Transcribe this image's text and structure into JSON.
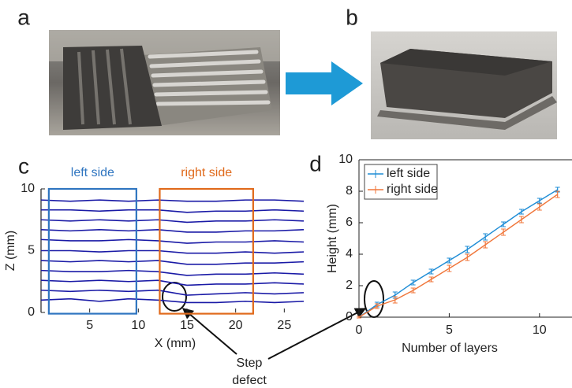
{
  "panels": [
    "a",
    "b",
    "c",
    "d"
  ],
  "annotation": {
    "lines": [
      "Step",
      "defect"
    ]
  },
  "chart_data": [
    {
      "type": "profile",
      "xlabel": "X (mm)",
      "ylabel": "Z (mm)",
      "xlim": [
        0,
        27
      ],
      "ylim": [
        0,
        10
      ],
      "xticks": [
        5,
        10,
        15,
        20,
        25
      ],
      "yticks": [
        0,
        5,
        10
      ],
      "x": [
        0,
        3,
        6,
        9,
        12,
        15,
        18,
        21,
        24,
        27
      ],
      "series": [
        {
          "color": "#1a1aa6",
          "values": [
            1.0,
            1.1,
            0.9,
            1.1,
            1.0,
            0.8,
            0.8,
            0.9,
            0.8,
            0.9
          ]
        },
        {
          "color": "#1a1aa6",
          "values": [
            1.8,
            1.7,
            1.8,
            1.7,
            1.8,
            1.4,
            1.5,
            1.6,
            1.5,
            1.6
          ]
        },
        {
          "color": "#1a1aa6",
          "values": [
            2.6,
            2.5,
            2.6,
            2.5,
            2.6,
            2.2,
            2.3,
            2.3,
            2.4,
            2.3
          ]
        },
        {
          "color": "#1a1aa6",
          "values": [
            3.4,
            3.3,
            3.3,
            3.4,
            3.3,
            3.0,
            3.1,
            3.1,
            3.2,
            3.1
          ]
        },
        {
          "color": "#1a1aa6",
          "values": [
            4.2,
            4.1,
            4.2,
            4.1,
            4.2,
            3.9,
            3.9,
            4.0,
            4.0,
            4.1
          ]
        },
        {
          "color": "#1a1aa6",
          "values": [
            5.0,
            5.0,
            4.9,
            5.0,
            5.0,
            4.8,
            4.8,
            4.9,
            4.8,
            4.9
          ]
        },
        {
          "color": "#1a1aa6",
          "values": [
            5.9,
            5.8,
            5.8,
            5.9,
            5.8,
            5.6,
            5.7,
            5.7,
            5.8,
            5.7
          ]
        },
        {
          "color": "#1a1aa6",
          "values": [
            6.7,
            6.6,
            6.7,
            6.6,
            6.7,
            6.5,
            6.5,
            6.6,
            6.6,
            6.7
          ]
        },
        {
          "color": "#1a1aa6",
          "values": [
            7.5,
            7.4,
            7.5,
            7.4,
            7.5,
            7.3,
            7.4,
            7.4,
            7.5,
            7.4
          ]
        },
        {
          "color": "#1a1aa6",
          "values": [
            8.3,
            8.3,
            8.2,
            8.3,
            8.3,
            8.1,
            8.2,
            8.2,
            8.3,
            8.2
          ]
        },
        {
          "color": "#1a1aa6",
          "values": [
            9.1,
            9.0,
            9.1,
            9.0,
            9.1,
            9.0,
            9.0,
            9.1,
            9.1,
            9.0
          ]
        }
      ],
      "regions": [
        {
          "label": "left side",
          "color": "#2f75c0",
          "x": [
            0.8,
            9.8
          ],
          "y": [
            -0.1,
            10
          ]
        },
        {
          "label": "right side",
          "color": "#e06a1b",
          "x": [
            12.2,
            21.8
          ],
          "y": [
            -0.1,
            10
          ]
        }
      ]
    },
    {
      "type": "errorline",
      "xlabel": "Number of layers",
      "ylabel": "Height (mm)",
      "xlim": [
        0,
        11.8
      ],
      "ylim": [
        0,
        10
      ],
      "xticks": [
        0,
        5,
        10
      ],
      "yticks": [
        0,
        2,
        4,
        6,
        8,
        10
      ],
      "legend": "upper left",
      "x": [
        0,
        1,
        2,
        3,
        4,
        5,
        6,
        7,
        8,
        9,
        10,
        11
      ],
      "series": [
        {
          "name": "left side",
          "color": "#1f8dd6",
          "values": [
            0,
            0.8,
            1.4,
            2.2,
            2.9,
            3.6,
            4.3,
            5.1,
            5.9,
            6.7,
            7.4,
            8.1
          ],
          "errors": [
            0.05,
            0.15,
            0.2,
            0.15,
            0.15,
            0.15,
            0.2,
            0.2,
            0.15,
            0.15,
            0.15,
            0.15
          ]
        },
        {
          "name": "right side",
          "color": "#f0763a",
          "values": [
            0,
            0.7,
            1.1,
            1.7,
            2.4,
            3.1,
            3.8,
            4.6,
            5.4,
            6.2,
            7.0,
            7.8
          ],
          "errors": [
            0.05,
            0.15,
            0.2,
            0.15,
            0.15,
            0.2,
            0.2,
            0.2,
            0.2,
            0.2,
            0.2,
            0.2
          ]
        }
      ]
    }
  ]
}
